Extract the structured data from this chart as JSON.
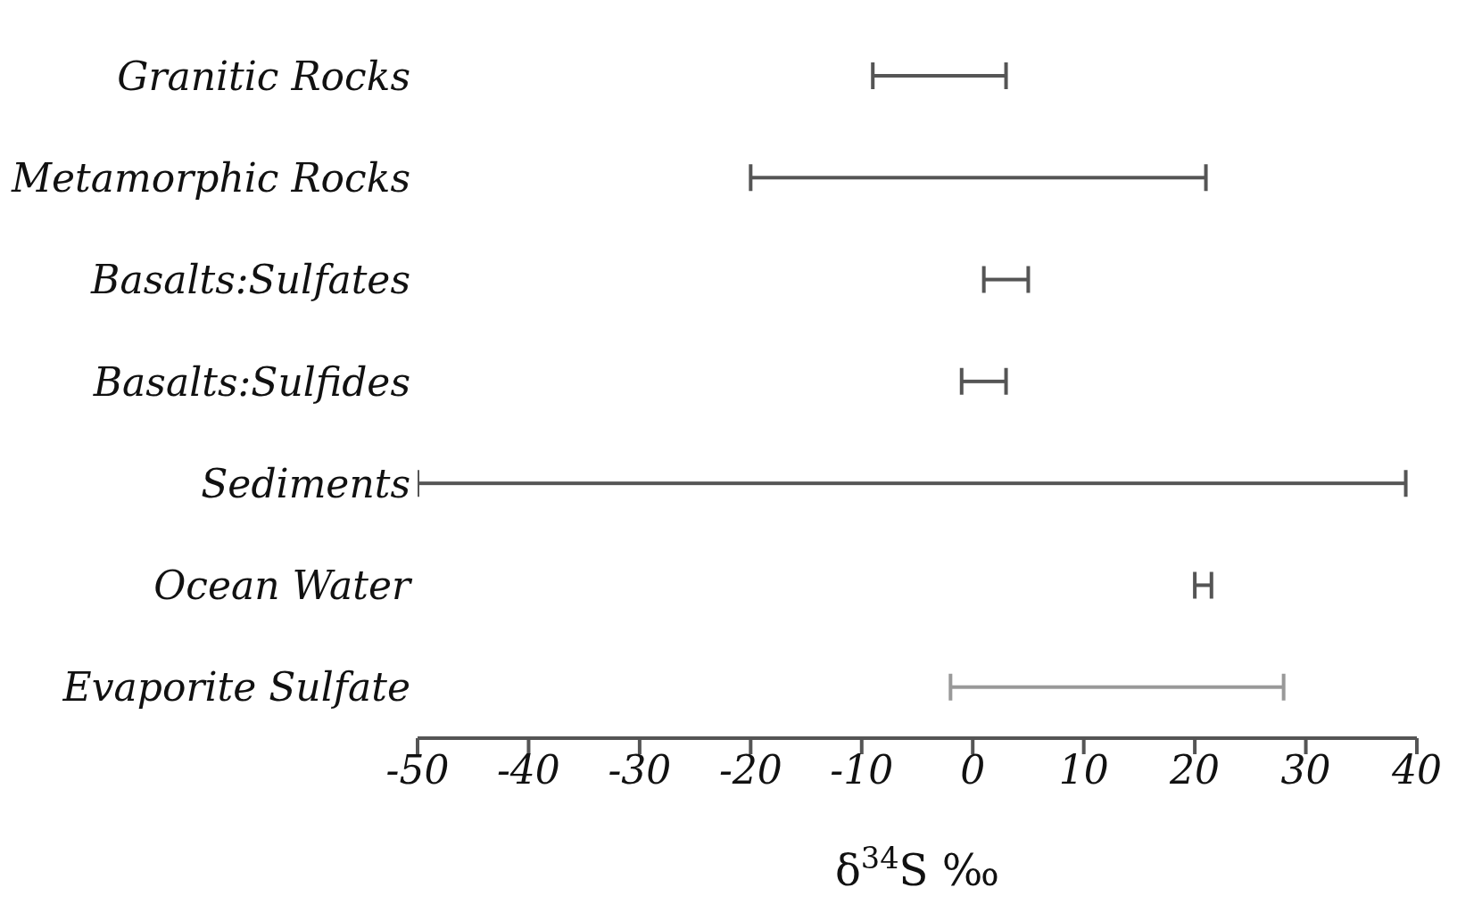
{
  "chart_data": {
    "type": "bar",
    "orientation": "horizontal",
    "xlabel": "δ$^{34}$S ‰",
    "categories": [
      "Granitic Rocks",
      "Metamorphic Rocks",
      "Basalts:Sulfates",
      "Basalts:Sulfides",
      "Sediments",
      "Ocean Water",
      "Evaporite Sulfate"
    ],
    "base": [
      -9,
      -20,
      1,
      -1,
      -50,
      20,
      -2
    ],
    "values": [
      12,
      41,
      4,
      4,
      89,
      1.5,
      30
    ],
    "colors": [
      "#555555",
      "#555555",
      "#555555",
      "#555555",
      "#555555",
      "#555555",
      "#999999"
    ],
    "xlim": [
      -50,
      40
    ],
    "xticks": [
      -50,
      -40,
      -30,
      -20,
      -10,
      0,
      10,
      20,
      30,
      40
    ]
  }
}
